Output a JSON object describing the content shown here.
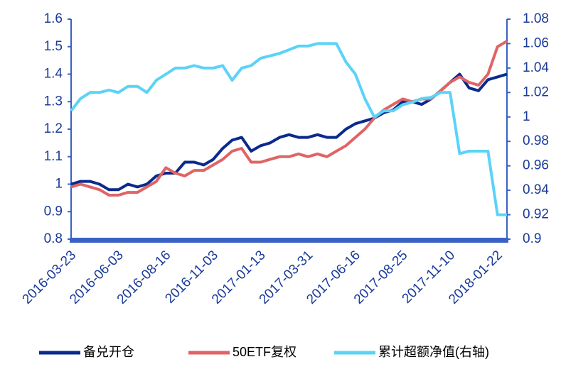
{
  "chart_data": {
    "type": "line",
    "categories": [
      "2016-03-23",
      null,
      null,
      null,
      null,
      "2016-06-03",
      null,
      null,
      null,
      null,
      "2016-08-16",
      null,
      null,
      null,
      null,
      "2016-11-03",
      null,
      null,
      null,
      null,
      "2017-01-13",
      null,
      null,
      null,
      null,
      "2017-03-31",
      null,
      null,
      null,
      null,
      "2017-06-16",
      null,
      null,
      null,
      null,
      "2017-08-25",
      null,
      null,
      null,
      null,
      "2017-11-10",
      null,
      null,
      null,
      null,
      "2018-01-22",
      null
    ],
    "series": [
      {
        "name": "备兑开仓",
        "color": "#0a2a8c",
        "values": [
          1.0,
          1.01,
          1.01,
          1.0,
          0.98,
          0.98,
          1.0,
          0.99,
          1.0,
          1.03,
          1.04,
          1.04,
          1.08,
          1.08,
          1.07,
          1.09,
          1.13,
          1.16,
          1.17,
          1.12,
          1.14,
          1.15,
          1.17,
          1.18,
          1.17,
          1.17,
          1.18,
          1.17,
          1.17,
          1.2,
          1.22,
          1.23,
          1.24,
          1.26,
          1.27,
          1.3,
          1.3,
          1.29,
          1.31,
          1.34,
          1.37,
          1.4,
          1.35,
          1.34,
          1.38,
          1.39,
          1.4
        ]
      },
      {
        "name": "50ETF复权",
        "color": "#e06464",
        "values": [
          0.99,
          1.0,
          0.99,
          0.98,
          0.96,
          0.96,
          0.97,
          0.97,
          0.99,
          1.01,
          1.06,
          1.04,
          1.03,
          1.05,
          1.05,
          1.07,
          1.09,
          1.12,
          1.13,
          1.08,
          1.08,
          1.09,
          1.1,
          1.1,
          1.11,
          1.1,
          1.11,
          1.1,
          1.12,
          1.14,
          1.17,
          1.2,
          1.24,
          1.27,
          1.29,
          1.31,
          1.3,
          1.31,
          1.31,
          1.34,
          1.37,
          1.39,
          1.37,
          1.36,
          1.4,
          1.5,
          1.52
        ]
      },
      {
        "name": "累计超额净值(右轴)",
        "color": "#5bd3f8",
        "axis": "y2",
        "values": [
          1.005,
          1.015,
          1.02,
          1.02,
          1.022,
          1.02,
          1.025,
          1.025,
          1.02,
          1.03,
          1.035,
          1.04,
          1.04,
          1.042,
          1.04,
          1.04,
          1.042,
          1.03,
          1.04,
          1.042,
          1.048,
          1.05,
          1.052,
          1.055,
          1.058,
          1.058,
          1.06,
          1.06,
          1.06,
          1.045,
          1.035,
          1.015,
          1.0,
          1.005,
          1.005,
          1.01,
          1.012,
          1.015,
          1.016,
          1.02,
          1.02,
          0.97,
          0.972,
          0.972,
          0.972,
          0.92,
          0.92
        ]
      }
    ],
    "ylim": [
      0.8,
      1.6
    ],
    "yticks": [
      0.8,
      0.9,
      1,
      1.1,
      1.2,
      1.3,
      1.4,
      1.5,
      1.6
    ],
    "y2lim": [
      0.9,
      1.08
    ],
    "y2ticks": [
      0.9,
      0.92,
      0.94,
      0.96,
      0.98,
      1,
      1.02,
      1.04,
      1.06,
      1.08
    ]
  }
}
